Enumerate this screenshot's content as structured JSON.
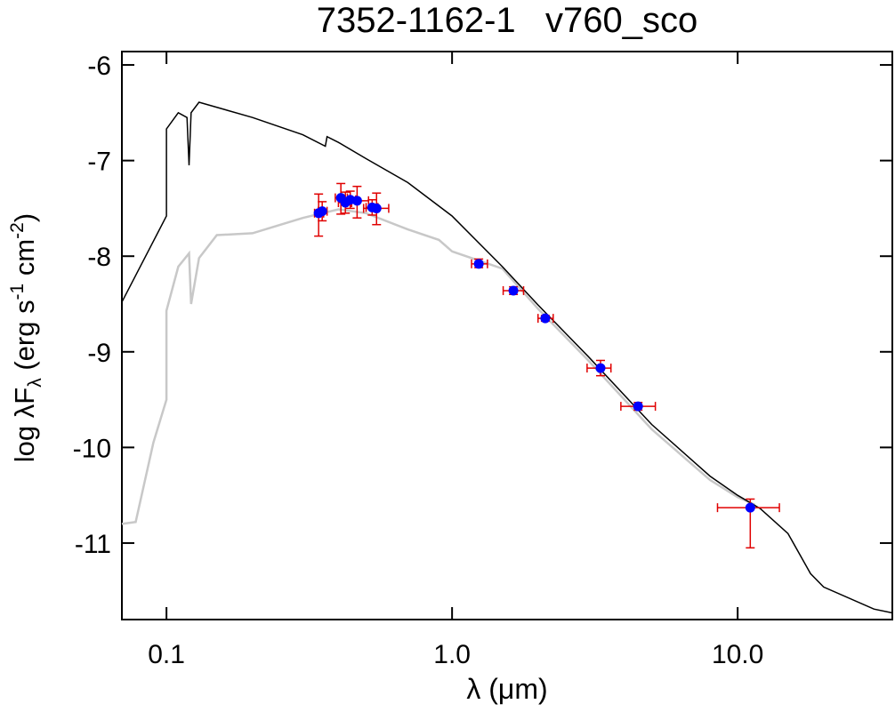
{
  "chart_data": {
    "type": "sed",
    "title": "7352-1162-1   v760_sco",
    "xlabel": [
      "λ (μm)"
    ],
    "ylabel": [
      "log λF",
      "λ",
      " (erg s",
      "-1",
      " cm",
      "-2",
      ")"
    ],
    "log_x": true,
    "xlim": [
      0.0698,
      34.8
    ],
    "ylim": [
      -11.8,
      -5.86
    ],
    "xticks": [
      0.1,
      {
        "value": 1,
        "label": "1.0"
      },
      {
        "value": 10,
        "label": "10.0"
      }
    ],
    "yticks": [
      -6,
      -7,
      -8,
      -9,
      -10,
      -11
    ],
    "models": [
      {
        "color": "#000000",
        "x": [
          0.0698,
          0.1,
          0.1,
          0.11,
          0.118,
          0.12,
          0.122,
          0.13,
          0.2,
          0.3,
          0.36,
          0.365,
          0.4,
          0.5,
          0.7,
          1.0,
          1.5,
          2,
          3,
          5,
          8,
          10,
          12,
          15,
          18,
          20,
          30,
          34.8
        ],
        "values": [
          -8.48,
          -7.58,
          -6.67,
          -6.5,
          -6.55,
          -7.05,
          -6.5,
          -6.39,
          -6.55,
          -6.73,
          -6.85,
          -6.75,
          -6.81,
          -6.98,
          -7.23,
          -7.58,
          -8.11,
          -8.51,
          -9.05,
          -9.76,
          -10.3,
          -10.5,
          -10.64,
          -10.9,
          -11.32,
          -11.46,
          -11.69,
          -11.73
        ]
      },
      {
        "color": "#c8c8c8",
        "x": [
          0.0698,
          0.078,
          0.09,
          0.1,
          0.1,
          0.11,
          0.12,
          0.122,
          0.13,
          0.15,
          0.2,
          0.3,
          0.4,
          0.5,
          0.7,
          0.9,
          1.0,
          1.5,
          2,
          3,
          5,
          8,
          10,
          11.5
        ],
        "values": [
          -10.8,
          -10.78,
          -9.95,
          -9.5,
          -8.57,
          -8.11,
          -7.97,
          -8.5,
          -8.02,
          -7.78,
          -7.76,
          -7.6,
          -7.51,
          -7.55,
          -7.72,
          -7.83,
          -7.95,
          -8.13,
          -8.55,
          -9.09,
          -9.81,
          -10.34,
          -10.52,
          -10.6
        ]
      }
    ],
    "points": {
      "color": "#0000ff",
      "error_color": "#e00000",
      "x": [
        0.341,
        0.351,
        0.408,
        0.423,
        0.44,
        0.465,
        0.525,
        0.544,
        1.24,
        1.64,
        2.12,
        3.31,
        4.48,
        11.07
      ],
      "y": [
        -7.55,
        -7.53,
        -7.39,
        -7.44,
        -7.41,
        -7.42,
        -7.49,
        -7.5,
        -8.08,
        -8.36,
        -8.65,
        -9.17,
        -9.57,
        -10.63
      ],
      "y_low": [
        -7.79,
        -7.63,
        -7.56,
        -7.55,
        -7.5,
        -7.6,
        -7.57,
        -7.67,
        -8.12,
        -8.4,
        -8.68,
        -9.25,
        -9.61,
        -11.05
      ],
      "y_high": [
        -7.35,
        -7.43,
        -7.24,
        -7.33,
        -7.32,
        -7.27,
        -7.41,
        -7.34,
        -8.03,
        -8.32,
        -8.62,
        -9.09,
        -9.53,
        -10.54
      ],
      "x_low": [
        0.33,
        0.34,
        0.39,
        0.4,
        0.42,
        0.42,
        0.5,
        0.49,
        1.17,
        1.51,
        2.0,
        2.97,
        3.9,
        8.5
      ],
      "x_high": [
        0.355,
        0.365,
        0.43,
        0.445,
        0.46,
        0.51,
        0.55,
        0.6,
        1.33,
        1.78,
        2.26,
        3.6,
        5.15,
        14.0
      ]
    }
  }
}
